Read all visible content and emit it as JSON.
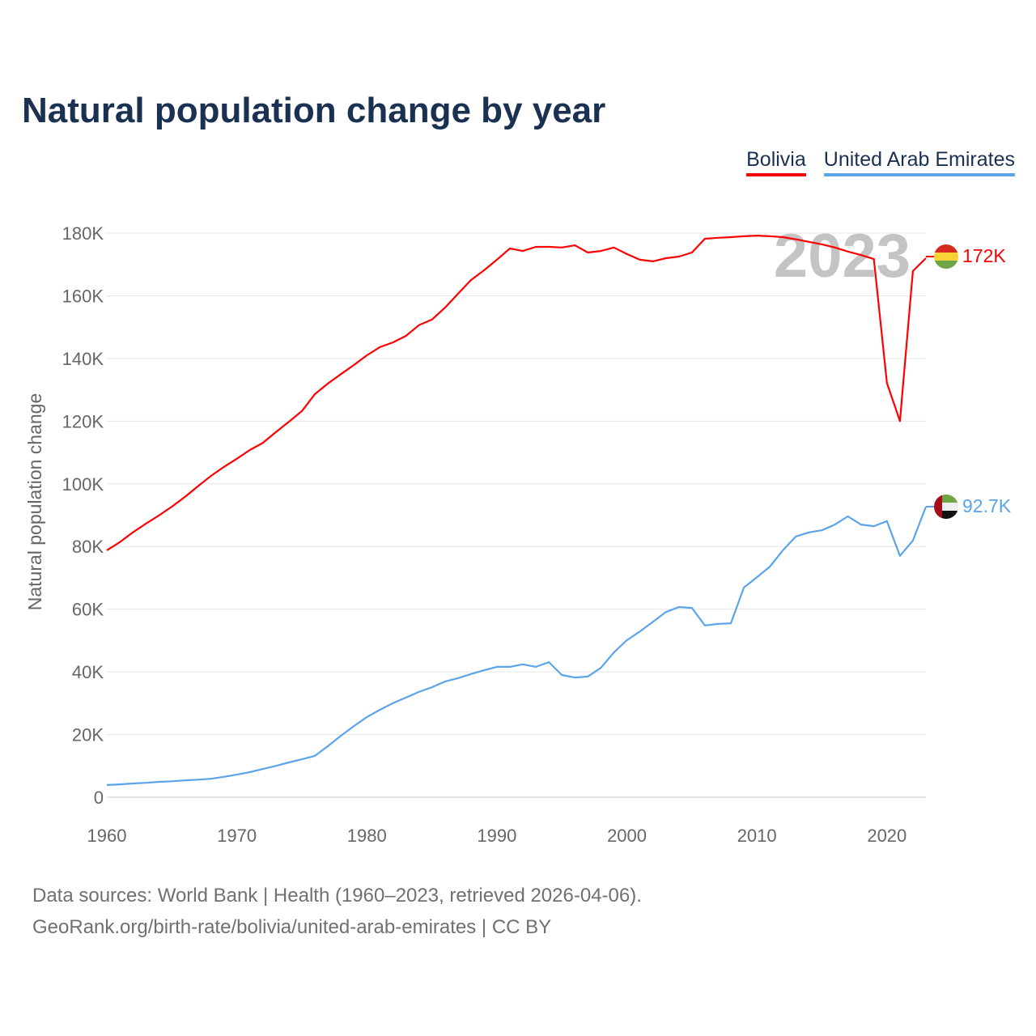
{
  "chart_data": {
    "type": "line",
    "title": "Natural population change by year",
    "xlabel": "",
    "ylabel": "Natural population change",
    "xlim": [
      1960,
      2023
    ],
    "ylim": [
      0,
      180000
    ],
    "x_ticks": [
      "1960",
      "1970",
      "1980",
      "1990",
      "2000",
      "2010",
      "2020"
    ],
    "y_ticks": [
      "0",
      "20K",
      "40K",
      "60K",
      "80K",
      "100K",
      "120K",
      "140K",
      "160K",
      "180K"
    ],
    "y_tick_values": [
      0,
      20000,
      40000,
      60000,
      80000,
      100000,
      120000,
      140000,
      160000,
      180000
    ],
    "year_watermark": "2023",
    "legend_position": "top-right",
    "grid": true,
    "x": [
      1960,
      1961,
      1962,
      1963,
      1964,
      1965,
      1966,
      1967,
      1968,
      1969,
      1970,
      1971,
      1972,
      1973,
      1974,
      1975,
      1976,
      1977,
      1978,
      1979,
      1980,
      1981,
      1982,
      1983,
      1984,
      1985,
      1986,
      1987,
      1988,
      1989,
      1990,
      1991,
      1992,
      1993,
      1994,
      1995,
      1996,
      1997,
      1998,
      1999,
      2000,
      2001,
      2002,
      2003,
      2004,
      2005,
      2006,
      2007,
      2008,
      2009,
      2010,
      2011,
      2012,
      2013,
      2014,
      2015,
      2016,
      2017,
      2018,
      2019,
      2020,
      2021,
      2022,
      2023
    ],
    "series": [
      {
        "name": "Bolivia",
        "color": "#ff0000",
        "end_label": "172K",
        "flag": "bolivia-flag",
        "values": [
          78.8,
          81.4,
          84.5,
          87.3,
          89.9,
          92.7,
          95.8,
          99.2,
          102.5,
          105.4,
          108,
          110.8,
          113.1,
          116.5,
          119.8,
          123.2,
          128.6,
          132,
          135,
          137.9,
          141,
          143.6,
          145.1,
          147.2,
          150.6,
          152.4,
          156.2,
          160.6,
          165,
          168.1,
          171.5,
          175.1,
          174.3,
          175.6,
          175.6,
          175.4,
          176.1,
          173.8,
          174.3,
          175.4,
          173.3,
          171.5,
          171,
          172,
          172.5,
          173.8,
          178.2,
          178.5,
          178.7,
          179,
          179.2,
          179,
          178.7,
          178,
          177.2,
          176.4,
          175.4,
          174.1,
          173,
          171.7,
          132.2,
          120,
          167.9,
          172
        ]
      },
      {
        "name": "United Arab Emirates",
        "color": "#5ba4ea",
        "end_label": "92.7K",
        "flag": "uae-flag",
        "values": [
          3.9,
          4.1,
          4.4,
          4.6,
          4.9,
          5.1,
          5.4,
          5.6,
          5.9,
          6.5,
          7.2,
          8,
          9,
          10,
          11.1,
          12.1,
          13.2,
          16.3,
          19.6,
          22.7,
          25.6,
          27.9,
          30,
          31.8,
          33.6,
          35.1,
          36.9,
          38,
          39.3,
          40.5,
          41.6,
          41.6,
          42.4,
          41.6,
          43.1,
          39,
          38.2,
          38.5,
          41.3,
          46.2,
          50.1,
          52.9,
          56,
          59.1,
          60.7,
          60.4,
          54.8,
          55.3,
          55.5,
          66.9,
          70.2,
          73.6,
          78.8,
          83.2,
          84.5,
          85.2,
          87,
          89.6,
          87,
          86.5,
          88.1,
          77,
          81.9,
          92.7
        ]
      }
    ],
    "values_unit": "thousands"
  },
  "footer": {
    "line1": "Data sources: World Bank | Health (1960–2023, retrieved 2026-04-06).",
    "line2": "GeoRank.org/birth-rate/bolivia/united-arab-emirates | CC BY"
  }
}
